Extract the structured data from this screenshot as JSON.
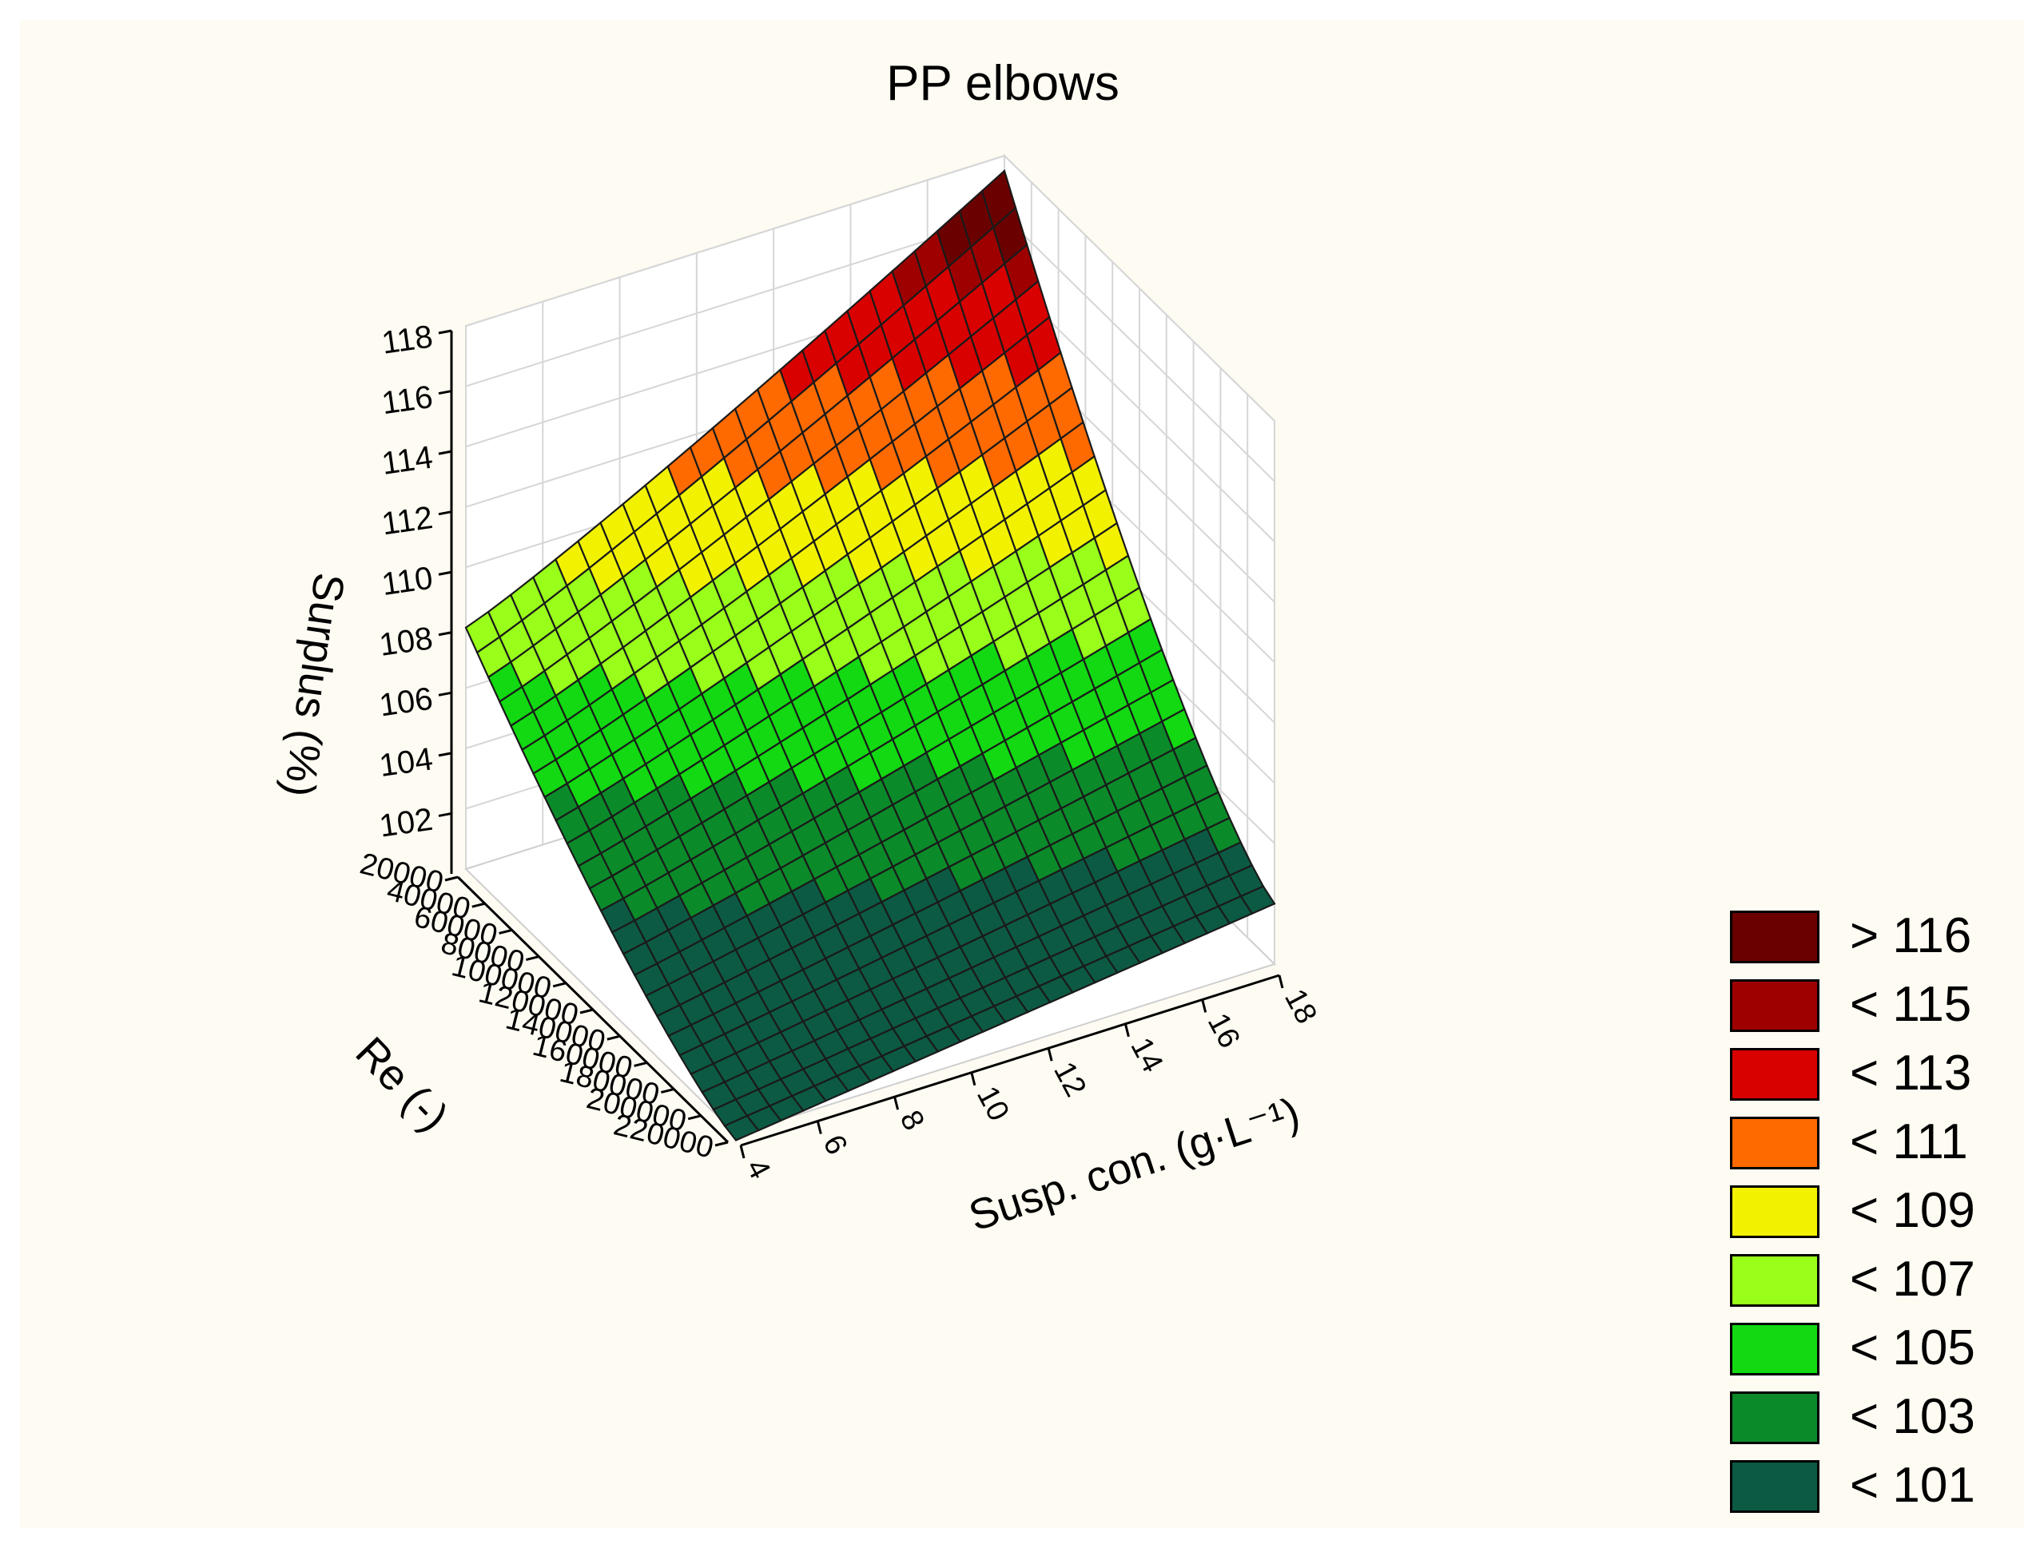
{
  "chart_data": {
    "type": "surface3d",
    "title": "PP elbows",
    "xlabel": "Re (-)",
    "ylabel": "Susp. con. (g·L⁻¹)",
    "zlabel": "Surplus (%)",
    "x_ticks": [
      "20000",
      "40000",
      "60000",
      "80000",
      "100000",
      "120000",
      "140000",
      "160000",
      "180000",
      "200000",
      "220000"
    ],
    "y_ticks": [
      "4",
      "6",
      "8",
      "10",
      "12",
      "14",
      "16",
      "18"
    ],
    "z_ticks": [
      "102",
      "104",
      "106",
      "108",
      "110",
      "112",
      "114",
      "116",
      "118"
    ],
    "xlim": [
      20000,
      220000
    ],
    "ylim": [
      4,
      18
    ],
    "zlim": [
      100,
      118
    ],
    "corner_values": {
      "re20000_susp4": 108.0,
      "re20000_susp18": 117.5,
      "re220000_susp4": 99.8,
      "re220000_susp18": 102.0
    },
    "grid": true,
    "legend": {
      "position": "bottom-right",
      "entries": [
        {
          "label": "> 116",
          "color": "#6b0000"
        },
        {
          "label": "< 115",
          "color": "#9e0000"
        },
        {
          "label": "< 113",
          "color": "#d90000"
        },
        {
          "label": "< 111",
          "color": "#ff6a00"
        },
        {
          "label": "< 109",
          "color": "#f2f200"
        },
        {
          "label": "< 107",
          "color": "#99ff1a"
        },
        {
          "label": "< 105",
          "color": "#12d912"
        },
        {
          "label": "< 103",
          "color": "#0b8a2a"
        },
        {
          "label": "< 101",
          "color": "#0c5a44"
        }
      ]
    }
  }
}
